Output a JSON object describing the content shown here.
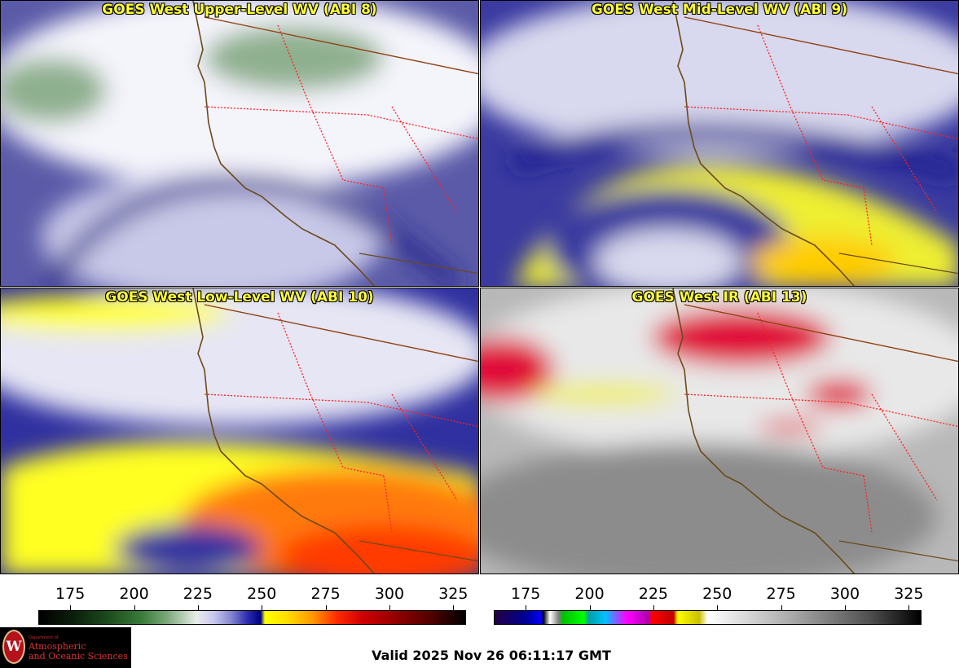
{
  "panels": [
    {
      "id": "p1",
      "title": "GOES West Upper-Level WV (ABI 8)",
      "palette": "wv-upper",
      "colors": [
        "#5a5aa8",
        "#c8c8e8",
        "#f4f4fb",
        "#8fb08f",
        "#22228a"
      ]
    },
    {
      "id": "p2",
      "title": "GOES West Mid-Level WV (ABI 9)",
      "palette": "wv-mid",
      "colors": [
        "#3a3aa0",
        "#d8d8ee",
        "#eeee30",
        "#1a1a90",
        "#ffcc00"
      ]
    },
    {
      "id": "p3",
      "title": "GOES West Low-Level WV (ABI 10)",
      "palette": "wv-low",
      "colors": [
        "#3030a0",
        "#e6e6f4",
        "#ffff20",
        "#ff7a10",
        "#ff3a00"
      ]
    },
    {
      "id": "p4",
      "title": "GOES West IR (ABI 13)",
      "palette": "ir",
      "colors": [
        "#b8b8b8",
        "#e8e8e8",
        "#8c8c8c",
        "#e0103a",
        "#f0f020"
      ]
    }
  ],
  "colorbars": {
    "left": {
      "ticks": [
        "175",
        "200",
        "225",
        "250",
        "275",
        "300",
        "325"
      ],
      "min": 162.5,
      "max": 330
    },
    "right": {
      "ticks": [
        "175",
        "200",
        "225",
        "250",
        "275",
        "300",
        "325"
      ],
      "min": 162.5,
      "max": 330
    }
  },
  "logo": {
    "department": "Department of",
    "line1": "Atmospheric",
    "line2": "and Oceanic Sciences",
    "crest_letter": "W"
  },
  "valid_time": "Valid 2025 Nov 26 06:11:17 GMT"
}
